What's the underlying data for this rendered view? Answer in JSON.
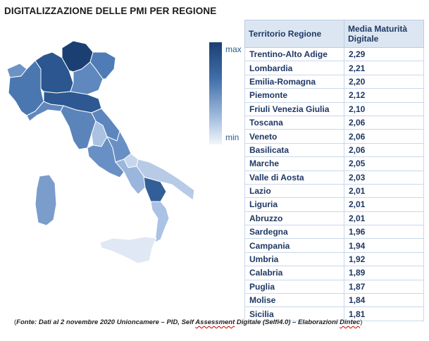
{
  "title": "DIGITALIZZAZIONE DELLE PMI PER REGIONE",
  "legend": {
    "max_label": "max",
    "min_label": "min"
  },
  "table": {
    "headers": [
      "Territorio Regione",
      "Media Maturità Digitale"
    ]
  },
  "chart_data": {
    "type": "table",
    "title": "DIGITALIZZAZIONE DELLE PMI PER REGIONE",
    "columns": [
      "Territorio Regione",
      "Media Maturità Digitale"
    ],
    "rows": [
      [
        "Trentino-Alto Adige",
        "2,29"
      ],
      [
        "Lombardia",
        "2,21"
      ],
      [
        "Emilia-Romagna",
        "2,20"
      ],
      [
        "Piemonte",
        "2,12"
      ],
      [
        "Friuli Venezia Giulia",
        "2,10"
      ],
      [
        "Toscana",
        "2,06"
      ],
      [
        "Veneto",
        "2,06"
      ],
      [
        "Basilicata",
        "2,06"
      ],
      [
        "Marche",
        "2,05"
      ],
      [
        "Valle di Aosta",
        "2,03"
      ],
      [
        "Lazio",
        "2,01"
      ],
      [
        "Liguria",
        "2,01"
      ],
      [
        "Abruzzo",
        "2,01"
      ],
      [
        "Sardegna",
        "1,96"
      ],
      [
        "Campania",
        "1,94"
      ],
      [
        "Umbria",
        "1,92"
      ],
      [
        "Calabria",
        "1,89"
      ],
      [
        "Puglia",
        "1,87"
      ],
      [
        "Molise",
        "1,84"
      ],
      [
        "Sicilia",
        "1,81"
      ]
    ]
  },
  "footnote": {
    "open": "(",
    "part1": "Fonte: Dati al 2 novembre 2020 Unioncamere – PID, Self ",
    "underlined1": "Assessment",
    "part2": " Digitale (Selfi4.0) – Elaborazioni ",
    "underlined2": "Dintec",
    "close": ")"
  },
  "colors": {
    "scale_dark": "#1c3f73",
    "scale_light": "#e8eef7",
    "header_bg": "#dce6f2",
    "text_blue": "#1f3864"
  }
}
